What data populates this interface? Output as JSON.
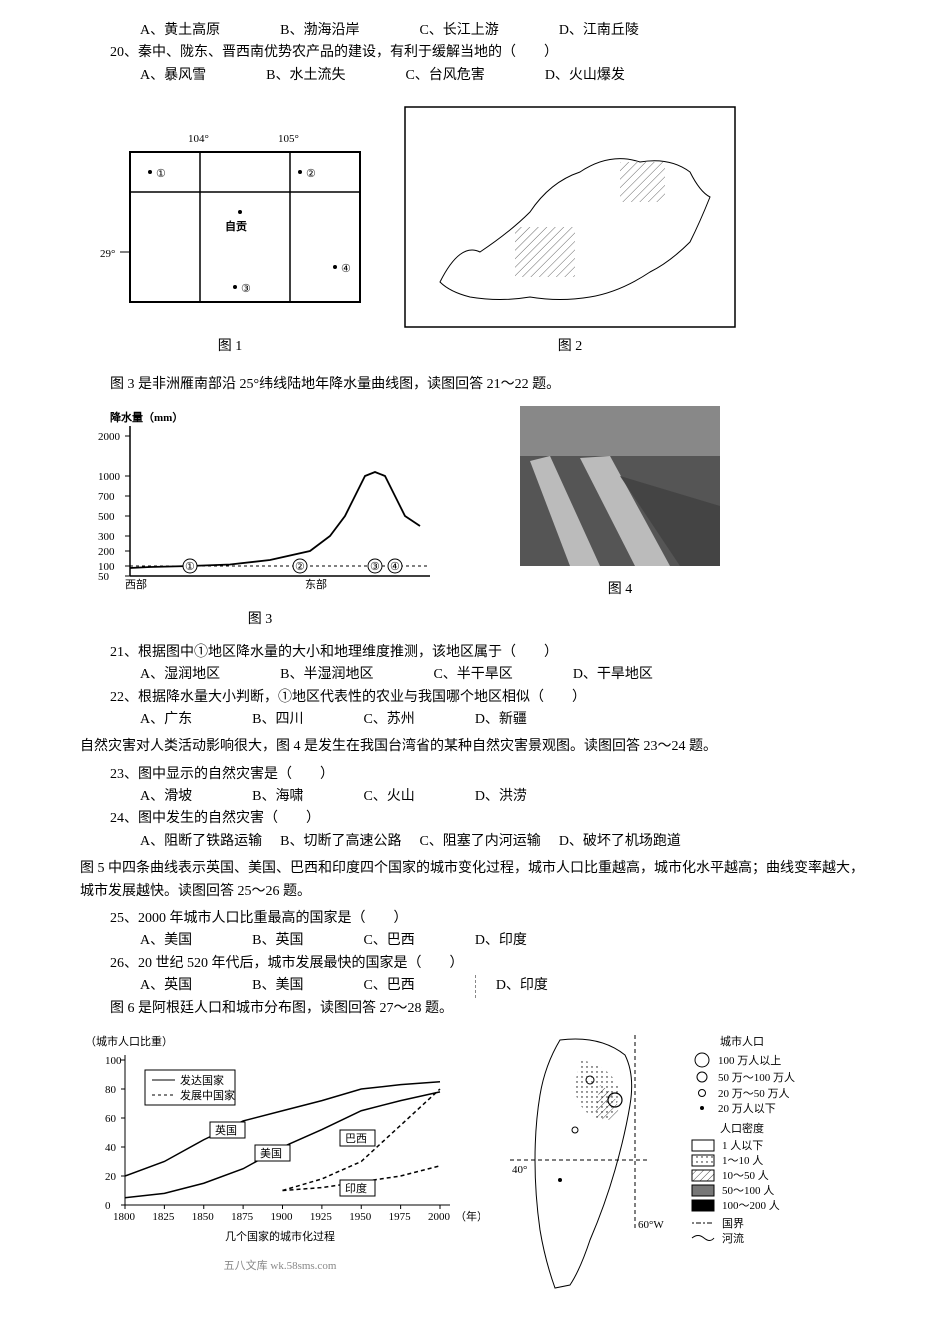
{
  "q19_options": {
    "a": "A、黄土高原",
    "b": "B、渤海沿岸",
    "c": "C、长江上游",
    "d": "D、江南丘陵"
  },
  "q20": {
    "text": "20、秦中、陇东、晋西南优势农产品的建设，有利于缓解当地的（　　）",
    "a": "A、暴风雪",
    "b": "B、水土流失",
    "c": "C、台风危害",
    "d": "D、火山爆发"
  },
  "fig1": {
    "label": "图 1",
    "lon_left": "104°",
    "lon_right": "105°",
    "lat": "29°",
    "point1": "①",
    "point2": "②",
    "point3": "③",
    "point4": "④",
    "city": "自贡"
  },
  "fig2": {
    "label": "图 2"
  },
  "fig3_intro": "图 3 是非洲雁南部沿 25°纬线陆地年降水量曲线图，读图回答 21～22 题。",
  "fig3": {
    "label": "图 3",
    "ylabel": "降水量（mm）",
    "yticks": [
      50,
      100,
      200,
      300,
      500,
      700,
      1000,
      2000
    ],
    "xlabels": {
      "west": "西部",
      "east": "东部"
    },
    "markers": [
      "①",
      "②",
      "③",
      "④"
    ],
    "line_color": "#000000",
    "bg": "#ffffff",
    "points": [
      [
        0,
        90
      ],
      [
        20,
        95
      ],
      [
        60,
        100
      ],
      [
        100,
        110
      ],
      [
        140,
        140
      ],
      [
        180,
        200
      ],
      [
        200,
        300
      ],
      [
        215,
        500
      ],
      [
        225,
        700
      ],
      [
        235,
        1000
      ],
      [
        245,
        1100
      ],
      [
        255,
        1000
      ],
      [
        265,
        700
      ],
      [
        275,
        500
      ],
      [
        290,
        400
      ]
    ]
  },
  "fig4": {
    "label": "图 4"
  },
  "q21": {
    "text": "21、根据图中①地区降水量的大小和地理维度推测，该地区属于（　　）",
    "a": "A、湿润地区",
    "b": "B、半湿润地区",
    "c": "C、半干旱区",
    "d": "D、干旱地区"
  },
  "q22": {
    "text": "22、根据降水量大小判断，①地区代表性的农业与我国哪个地区相似（　　）",
    "a": "A、广东",
    "b": "B、四川",
    "c": "C、苏州",
    "d": "D、新疆"
  },
  "disaster_intro": "自然灾害对人类活动影响很大，图 4 是发生在我国台湾省的某种自然灾害景观图。读图回答 23～24 题。",
  "q23": {
    "text": "23、图中显示的自然灾害是（　　）",
    "a": "A、滑坡",
    "b": "B、海啸",
    "c": "C、火山",
    "d": "D、洪涝"
  },
  "q24": {
    "text": "24、图中发生的自然灾害（　　）",
    "a": "A、阻断了铁路运输",
    "b": "B、切断了高速公路",
    "c": "C、阻塞了内河运输",
    "d": "D、破坏了机场跑道"
  },
  "fig5_intro": "图 5 中四条曲线表示英国、美国、巴西和印度四个国家的城市变化过程，城市人口比重越高，城市化水平越高；曲线变率越大，城市发展越快。读图回答 25～26 题。",
  "q25": {
    "text": "25、2000 年城市人口比重最高的国家是（　　）",
    "a": "A、美国",
    "b": "B、英国",
    "c": "C、巴西",
    "d": "D、印度"
  },
  "q26": {
    "text": "26、20 世纪 520 年代后，城市发展最快的国家是（　　）",
    "a": "A、英国",
    "b": "B、美国",
    "c": "C、巴西",
    "d": "D、印度"
  },
  "fig6_intro": "图 6 是阿根廷人口和城市分布图，读图回答 27～28 题。",
  "fig5": {
    "ylabel": "（城市人口比重）",
    "yticks": [
      0,
      20,
      40,
      60,
      80,
      100
    ],
    "xticks": [
      1800,
      1825,
      1850,
      1875,
      1900,
      1925,
      1950,
      1975,
      2000
    ],
    "xunit": "（年）",
    "xlabel": "几个国家的城市化过程",
    "legend": {
      "solid": "发达国家",
      "dashed": "发展中国家"
    },
    "countries": {
      "uk": "英国",
      "us": "美国",
      "br": "巴西",
      "in": "印度"
    },
    "colors": {
      "line": "#000000",
      "grid": "#cccccc"
    },
    "uk_pts": [
      [
        0,
        20
      ],
      [
        25,
        30
      ],
      [
        50,
        45
      ],
      [
        75,
        58
      ],
      [
        100,
        65
      ],
      [
        125,
        72
      ],
      [
        150,
        80
      ],
      [
        175,
        83
      ],
      [
        200,
        85
      ]
    ],
    "us_pts": [
      [
        0,
        5
      ],
      [
        25,
        8
      ],
      [
        50,
        15
      ],
      [
        75,
        25
      ],
      [
        100,
        40
      ],
      [
        125,
        52
      ],
      [
        150,
        65
      ],
      [
        175,
        72
      ],
      [
        200,
        78
      ]
    ],
    "br_pts": [
      [
        100,
        10
      ],
      [
        125,
        18
      ],
      [
        150,
        30
      ],
      [
        175,
        55
      ],
      [
        200,
        80
      ]
    ],
    "in_pts": [
      [
        100,
        10
      ],
      [
        125,
        12
      ],
      [
        150,
        16
      ],
      [
        175,
        20
      ],
      [
        200,
        27
      ]
    ]
  },
  "fig6": {
    "legend_title_pop": "城市人口",
    "pop1": "100 万人以上",
    "pop2": "50 万～100 万人",
    "pop3": "20 万～50 万人",
    "pop4": "20 万人以下",
    "legend_title_den": "人口密度",
    "den1": "1 人以下",
    "den2": "1～10 人",
    "den3": "10～50 人",
    "den4": "50～100 人",
    "den5": "100～200 人",
    "border": "国界",
    "river": "河流",
    "lat": "40°",
    "lon": "60°W"
  },
  "watermark": "五八文库 wk.58sms.com"
}
